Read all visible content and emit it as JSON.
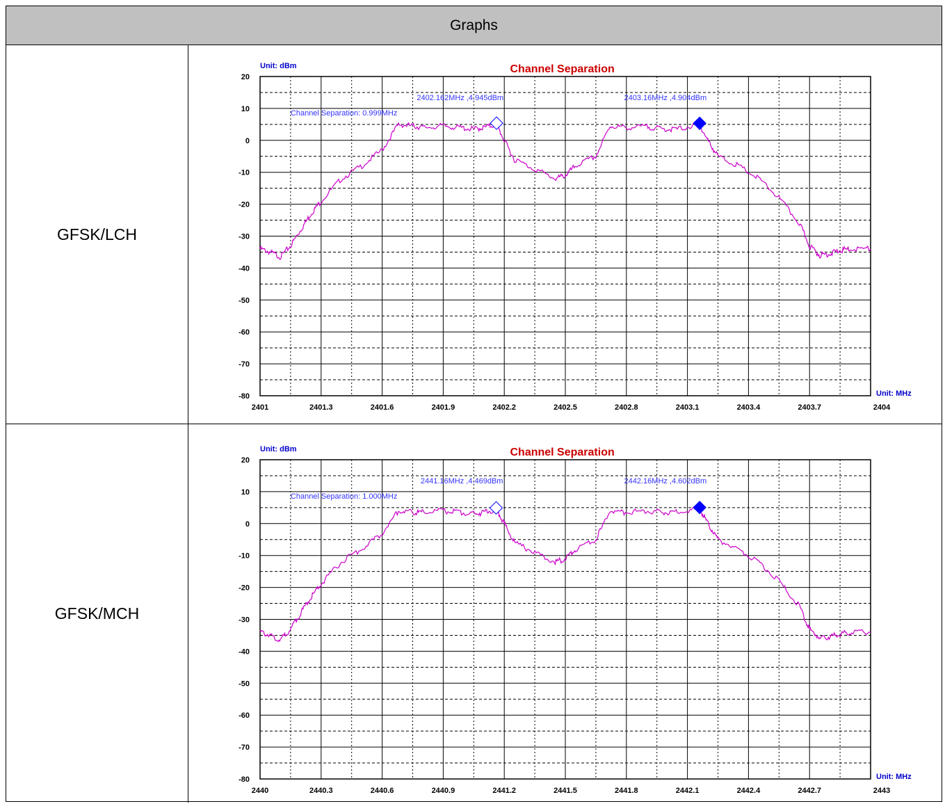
{
  "table": {
    "header": "Graphs"
  },
  "rows": [
    {
      "label": "GFSK/LCH"
    },
    {
      "label": "GFSK/MCH"
    }
  ],
  "colors": {
    "trace": "#cc00cc",
    "marker": "#0000ff",
    "title": "#cc0000",
    "unit": "#0000cc",
    "annotation": "#3333ff"
  },
  "chart_data": [
    {
      "type": "line",
      "title": "Channel Separation",
      "ylabel": "Unit: dBm",
      "xlabel": "Unit: MHz",
      "xlim": [
        2401,
        2404
      ],
      "ylim": [
        -80,
        20
      ],
      "xticks": [
        "2401",
        "2401.3",
        "2401.6",
        "2401.9",
        "2402.2",
        "2402.5",
        "2402.8",
        "2403.1",
        "2403.4",
        "2403.7",
        "2404"
      ],
      "yticks": [
        "20",
        "10",
        "0",
        "-10",
        "-20",
        "-30",
        "-40",
        "-50",
        "-60",
        "-70",
        "-80"
      ],
      "grid": true,
      "series": [
        {
          "x": [
            2401.0,
            2401.05,
            2401.1,
            2401.15,
            2401.2,
            2401.25,
            2401.3,
            2401.4,
            2401.5,
            2401.6,
            2401.68,
            2401.75,
            2401.8,
            2401.9,
            2401.98,
            2402.05,
            2402.1,
            2402.162,
            2402.2,
            2402.25,
            2402.35,
            2402.45,
            2402.5,
            2402.55,
            2402.65,
            2402.72,
            2402.8,
            2402.9,
            2402.98,
            2403.05,
            2403.16,
            2403.2,
            2403.25,
            2403.35,
            2403.45,
            2403.55,
            2403.65,
            2403.7,
            2403.75,
            2403.8,
            2403.85,
            2403.9,
            2404.0
          ],
          "y": [
            -34,
            -35,
            -36.5,
            -33,
            -28,
            -23,
            -19,
            -12,
            -8,
            -3,
            5,
            4.5,
            4,
            4.5,
            4,
            3.5,
            4,
            4.945,
            0,
            -6,
            -9,
            -12,
            -11,
            -8,
            -5,
            4.5,
            4,
            4.3,
            3.5,
            3.5,
            4.904,
            0,
            -5,
            -8,
            -12,
            -18,
            -26,
            -33,
            -36,
            -35.5,
            -34.5,
            -34,
            -34
          ]
        }
      ],
      "markers": [
        {
          "x": 2402.162,
          "y": 4.945,
          "style": "open",
          "label": "2402.162MHz ,4.945dBm"
        },
        {
          "x": 2403.16,
          "y": 4.904,
          "style": "filled",
          "label": "2403.16MHz ,4.904dBm"
        }
      ],
      "annotation": "Channel Separation: 0.999MHz"
    },
    {
      "type": "line",
      "title": "Channel Separation",
      "ylabel": "Unit: dBm",
      "xlabel": "Unit: MHz",
      "xlim": [
        2440,
        2443
      ],
      "ylim": [
        -80,
        20
      ],
      "xticks": [
        "2440",
        "2440.3",
        "2440.6",
        "2440.9",
        "2441.2",
        "2441.5",
        "2441.8",
        "2442.1",
        "2442.4",
        "2442.7",
        "2443"
      ],
      "yticks": [
        "20",
        "10",
        "0",
        "-10",
        "-20",
        "-30",
        "-40",
        "-50",
        "-60",
        "-70",
        "-80"
      ],
      "grid": true,
      "series": [
        {
          "x": [
            2440.0,
            2440.05,
            2440.1,
            2440.15,
            2440.2,
            2440.25,
            2440.3,
            2440.4,
            2440.5,
            2440.6,
            2440.68,
            2440.75,
            2440.8,
            2440.9,
            2440.98,
            2441.05,
            2441.1,
            2441.16,
            2441.2,
            2441.25,
            2441.35,
            2441.45,
            2441.5,
            2441.55,
            2441.65,
            2441.72,
            2441.8,
            2441.9,
            2441.98,
            2442.05,
            2442.16,
            2442.2,
            2442.25,
            2442.35,
            2442.45,
            2442.55,
            2442.65,
            2442.7,
            2442.75,
            2442.8,
            2442.85,
            2442.9,
            2443.0
          ],
          "y": [
            -34,
            -35,
            -36.5,
            -33,
            -28,
            -23,
            -19,
            -12,
            -8,
            -3,
            4,
            3.5,
            3.5,
            4,
            3.5,
            3,
            3.5,
            4.469,
            0,
            -6,
            -9,
            -12,
            -11,
            -8,
            -5,
            4,
            3.5,
            4,
            3.5,
            3.5,
            4.602,
            0,
            -5,
            -8,
            -12,
            -18,
            -26,
            -33,
            -36,
            -35.5,
            -34.5,
            -34,
            -34
          ]
        }
      ],
      "markers": [
        {
          "x": 2441.16,
          "y": 4.469,
          "style": "open",
          "label": "2441.16MHz ,4.469dBm"
        },
        {
          "x": 2442.16,
          "y": 4.602,
          "style": "filled",
          "label": "2442.16MHz ,4.602dBm"
        }
      ],
      "annotation": "Channel Separation: 1.000MHz"
    }
  ]
}
